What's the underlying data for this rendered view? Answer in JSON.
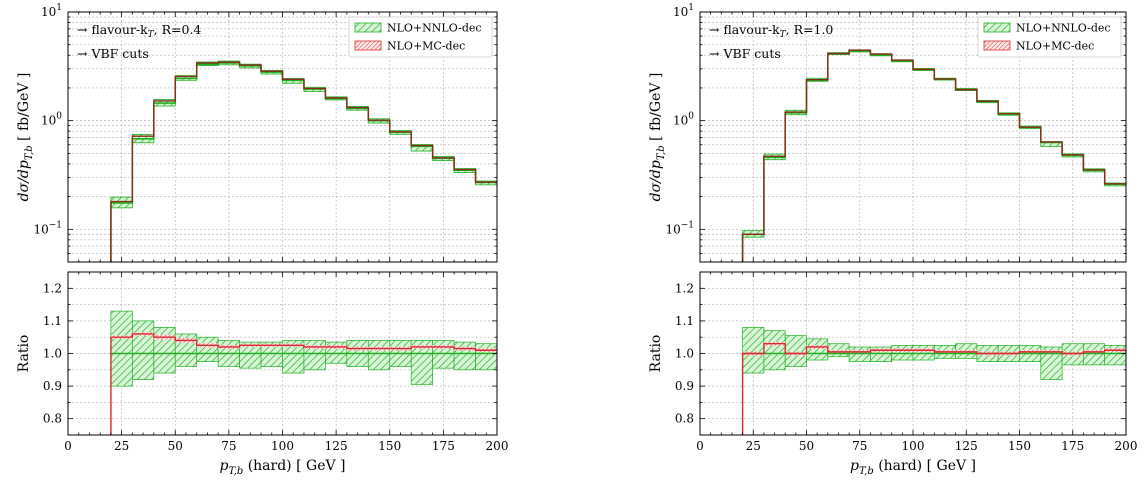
{
  "colors": {
    "nnlo": "#1fb01f",
    "nnlo_fill": "#7fe07f",
    "mc": "#d62b2b",
    "mc_fill": "#f3b3b3",
    "central": "#222222",
    "grid": "#b8b8b8"
  },
  "chart_data": [
    {
      "type": "line",
      "drawstyle": "steps",
      "grid": true,
      "legend_position": "top-right",
      "annotations": [
        "→ flavour-k",
        "T",
        ", R=0.4",
        "→ VBF cuts"
      ],
      "legend": [
        "NLO+NNLO-dec",
        "NLO+MC-dec"
      ],
      "xlabel_main": "p",
      "xlabel_sub": "T,b",
      "xlabel_tail": " (hard)  [ GeV ]",
      "ylabel_main": "dσ/dp",
      "ylabel_sub": "T,b",
      "ylabel_tail": "  [ fb/GeV ]",
      "ratio_ylabel": "Ratio",
      "xlim": [
        0,
        200
      ],
      "ylim": [
        0.05,
        10
      ],
      "yscale": "log",
      "ratio_ylim": [
        0.75,
        1.25
      ],
      "x_ticks": [
        "0",
        "25",
        "50",
        "75",
        "100",
        "125",
        "150",
        "175",
        "200"
      ],
      "y_ticks": [
        {
          "base": "10",
          "exp": "−1"
        },
        {
          "base": "10",
          "exp": "0"
        },
        {
          "base": "10",
          "exp": "1"
        }
      ],
      "ratio_ticks": [
        "0.8",
        "0.9",
        "1.0",
        "1.1",
        "1.2"
      ],
      "bin_edges": [
        20,
        30,
        40,
        50,
        60,
        70,
        80,
        90,
        100,
        110,
        120,
        130,
        140,
        150,
        160,
        170,
        180,
        190,
        200
      ],
      "series": [
        {
          "name": "NLO+NNLO-dec",
          "central": [
            0.175,
            0.68,
            1.45,
            2.45,
            3.3,
            3.4,
            3.2,
            2.8,
            2.35,
            1.95,
            1.6,
            1.3,
            1.0,
            0.78,
            0.58,
            0.45,
            0.35,
            0.27
          ],
          "ratio_up": [
            1.13,
            1.1,
            1.08,
            1.06,
            1.05,
            1.04,
            1.035,
            1.035,
            1.04,
            1.04,
            1.035,
            1.04,
            1.04,
            1.04,
            1.04,
            1.04,
            1.035,
            1.03
          ],
          "ratio_down": [
            0.9,
            0.92,
            0.94,
            0.96,
            0.975,
            0.96,
            0.955,
            0.96,
            0.94,
            0.95,
            0.97,
            0.96,
            0.95,
            0.96,
            0.905,
            0.955,
            0.95,
            0.95
          ]
        },
        {
          "name": "NLO+MC-dec",
          "central": [
            0.18,
            0.72,
            1.52,
            2.55,
            3.4,
            3.45,
            3.25,
            2.85,
            2.4,
            1.98,
            1.62,
            1.32,
            1.01,
            0.79,
            0.59,
            0.455,
            0.355,
            0.272
          ],
          "ratio": [
            1.05,
            1.06,
            1.05,
            1.04,
            1.025,
            1.02,
            1.025,
            1.025,
            1.025,
            1.02,
            1.02,
            1.015,
            1.015,
            1.015,
            1.02,
            1.02,
            1.015,
            1.01
          ],
          "ratio_up": [
            1.055,
            1.065,
            1.058,
            1.048,
            1.032,
            1.026,
            1.03,
            1.03,
            1.03,
            1.026,
            1.026,
            1.021,
            1.021,
            1.021,
            1.026,
            1.026,
            1.021,
            1.016
          ],
          "ratio_down": [
            1.045,
            1.055,
            1.042,
            1.032,
            1.018,
            1.014,
            1.02,
            1.02,
            1.02,
            1.014,
            1.014,
            1.009,
            1.009,
            1.009,
            1.014,
            1.014,
            1.009,
            1.004
          ]
        }
      ]
    },
    {
      "type": "line",
      "drawstyle": "steps",
      "grid": true,
      "legend_position": "top-right",
      "annotations": [
        "→ flavour-k",
        "T",
        ", R=1.0",
        "→ VBF cuts"
      ],
      "legend": [
        "NLO+NNLO-dec",
        "NLO+MC-dec"
      ],
      "xlabel_main": "p",
      "xlabel_sub": "T,b",
      "xlabel_tail": " (hard)  [ GeV ]",
      "ylabel_main": "dσ/dp",
      "ylabel_sub": "T,b",
      "ylabel_tail": "  [ fb/GeV ]",
      "ratio_ylabel": "Ratio",
      "xlim": [
        0,
        200
      ],
      "ylim": [
        0.05,
        10
      ],
      "yscale": "log",
      "ratio_ylim": [
        0.75,
        1.25
      ],
      "x_ticks": [
        "0",
        "25",
        "50",
        "75",
        "100",
        "125",
        "150",
        "175",
        "200"
      ],
      "y_ticks": [
        {
          "base": "10",
          "exp": "−1"
        },
        {
          "base": "10",
          "exp": "0"
        },
        {
          "base": "10",
          "exp": "1"
        }
      ],
      "ratio_ticks": [
        "0.8",
        "0.9",
        "1.0",
        "1.1",
        "1.2"
      ],
      "bin_edges": [
        20,
        30,
        40,
        50,
        60,
        70,
        80,
        90,
        100,
        110,
        120,
        130,
        140,
        150,
        160,
        170,
        180,
        190,
        200
      ],
      "series": [
        {
          "name": "NLO+NNLO-dec",
          "central": [
            0.09,
            0.46,
            1.18,
            2.35,
            4.1,
            4.4,
            4.05,
            3.55,
            2.95,
            2.4,
            1.92,
            1.5,
            1.15,
            0.87,
            0.63,
            0.48,
            0.35,
            0.26
          ],
          "ratio_up": [
            1.08,
            1.07,
            1.055,
            1.045,
            1.03,
            1.02,
            1.02,
            1.025,
            1.025,
            1.025,
            1.03,
            1.025,
            1.025,
            1.025,
            1.02,
            1.03,
            1.03,
            1.025
          ],
          "ratio_down": [
            0.94,
            0.95,
            0.96,
            0.98,
            0.99,
            0.975,
            0.975,
            0.98,
            0.98,
            0.985,
            0.985,
            0.975,
            0.975,
            0.975,
            0.92,
            0.965,
            0.965,
            0.965
          ]
        },
        {
          "name": "NLO+MC-dec",
          "central": [
            0.09,
            0.47,
            1.2,
            2.38,
            4.15,
            4.45,
            4.1,
            3.6,
            2.97,
            2.42,
            1.93,
            1.51,
            1.16,
            0.87,
            0.635,
            0.485,
            0.353,
            0.262
          ],
          "ratio": [
            1.0,
            1.03,
            1.0,
            1.02,
            1.005,
            1.005,
            1.01,
            1.01,
            1.01,
            1.005,
            1.005,
            1.0,
            1.0,
            1.005,
            1.005,
            1.0,
            1.005,
            1.01
          ],
          "ratio_up": [
            1.006,
            1.036,
            1.006,
            1.026,
            1.011,
            1.011,
            1.016,
            1.016,
            1.016,
            1.011,
            1.011,
            1.006,
            1.006,
            1.011,
            1.011,
            1.006,
            1.011,
            1.016
          ],
          "ratio_down": [
            0.994,
            1.024,
            0.994,
            1.014,
            0.999,
            0.999,
            1.004,
            1.004,
            1.004,
            0.999,
            0.999,
            0.994,
            0.994,
            0.999,
            0.999,
            0.994,
            0.999,
            1.004
          ]
        }
      ]
    }
  ]
}
